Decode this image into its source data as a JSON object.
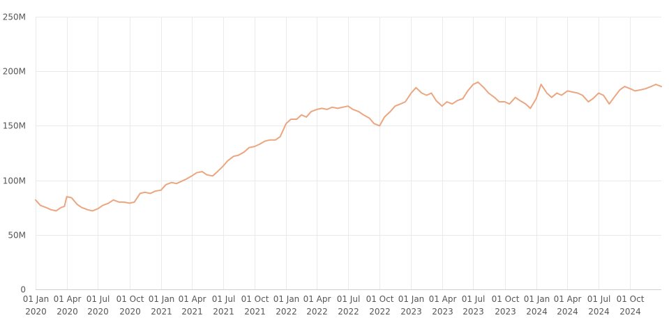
{
  "chart_data": {
    "type": "line",
    "title": "",
    "xlabel": "",
    "ylabel": "",
    "ylim": [
      0,
      250000000
    ],
    "xlim": [
      "2020-01-01",
      "2024-12-31"
    ],
    "grid": true,
    "line_color": "#eba57f",
    "y_ticks": [
      {
        "value": 0,
        "label": "0"
      },
      {
        "value": 50000000,
        "label": "50M"
      },
      {
        "value": 100000000,
        "label": "100M"
      },
      {
        "value": 150000000,
        "label": "150M"
      },
      {
        "value": 200000000,
        "label": "200M"
      },
      {
        "value": 250000000,
        "label": "250M"
      }
    ],
    "x_ticks": [
      {
        "date": "2020-01-01",
        "line1": "01 Jan",
        "line2": "2020"
      },
      {
        "date": "2020-04-01",
        "line1": "01 Apr",
        "line2": "2020"
      },
      {
        "date": "2020-07-01",
        "line1": "01 Jul",
        "line2": "2020"
      },
      {
        "date": "2020-10-01",
        "line1": "01 Oct",
        "line2": "2020"
      },
      {
        "date": "2021-01-01",
        "line1": "01 Jan",
        "line2": "2021"
      },
      {
        "date": "2021-04-01",
        "line1": "01 Apr",
        "line2": "2021"
      },
      {
        "date": "2021-07-01",
        "line1": "01 Jul",
        "line2": "2021"
      },
      {
        "date": "2021-10-01",
        "line1": "01 Oct",
        "line2": "2021"
      },
      {
        "date": "2022-01-01",
        "line1": "01 Jan",
        "line2": "2022"
      },
      {
        "date": "2022-04-01",
        "line1": "01 Apr",
        "line2": "2022"
      },
      {
        "date": "2022-07-01",
        "line1": "01 Jul",
        "line2": "2022"
      },
      {
        "date": "2022-10-01",
        "line1": "01 Oct",
        "line2": "2022"
      },
      {
        "date": "2023-01-01",
        "line1": "01 Jan",
        "line2": "2023"
      },
      {
        "date": "2023-04-01",
        "line1": "01 Apr",
        "line2": "2023"
      },
      {
        "date": "2023-07-01",
        "line1": "01 Jul",
        "line2": "2023"
      },
      {
        "date": "2023-10-01",
        "line1": "01 Oct",
        "line2": "2023"
      },
      {
        "date": "2024-01-01",
        "line1": "01 Jan",
        "line2": "2024"
      },
      {
        "date": "2024-04-01",
        "line1": "01 Apr",
        "line2": "2024"
      },
      {
        "date": "2024-07-01",
        "line1": "01 Jul",
        "line2": "2024"
      },
      {
        "date": "2024-10-01",
        "line1": "01 Oct",
        "line2": "2024"
      }
    ],
    "series": [
      {
        "x": [
          "2020-01-01",
          "2020-01-15",
          "2020-02-01",
          "2020-02-15",
          "2020-03-01",
          "2020-03-15",
          "2020-03-25",
          "2020-04-01",
          "2020-04-15",
          "2020-05-01",
          "2020-05-15",
          "2020-06-01",
          "2020-06-15",
          "2020-07-01",
          "2020-07-15",
          "2020-08-01",
          "2020-08-15",
          "2020-09-01",
          "2020-09-15",
          "2020-10-01",
          "2020-10-15",
          "2020-11-01",
          "2020-11-15",
          "2020-12-01",
          "2020-12-15",
          "2021-01-01",
          "2021-01-15",
          "2021-02-01",
          "2021-02-15",
          "2021-03-01",
          "2021-03-15",
          "2021-04-01",
          "2021-04-15",
          "2021-05-01",
          "2021-05-15",
          "2021-06-01",
          "2021-06-15",
          "2021-07-01",
          "2021-07-15",
          "2021-08-01",
          "2021-08-15",
          "2021-09-01",
          "2021-09-15",
          "2021-10-01",
          "2021-10-15",
          "2021-11-01",
          "2021-11-15",
          "2021-12-01",
          "2021-12-15",
          "2022-01-01",
          "2022-01-15",
          "2022-02-01",
          "2022-02-15",
          "2022-03-01",
          "2022-03-15",
          "2022-04-01",
          "2022-04-15",
          "2022-05-01",
          "2022-05-15",
          "2022-06-01",
          "2022-06-15",
          "2022-07-01",
          "2022-07-15",
          "2022-08-01",
          "2022-08-15",
          "2022-09-01",
          "2022-09-15",
          "2022-10-01",
          "2022-10-15",
          "2022-11-01",
          "2022-11-15",
          "2022-12-01",
          "2022-12-15",
          "2023-01-01",
          "2023-01-15",
          "2023-02-01",
          "2023-02-15",
          "2023-03-01",
          "2023-03-15",
          "2023-04-01",
          "2023-04-15",
          "2023-05-01",
          "2023-05-15",
          "2023-06-01",
          "2023-06-15",
          "2023-07-01",
          "2023-07-15",
          "2023-08-01",
          "2023-08-15",
          "2023-09-01",
          "2023-09-15",
          "2023-10-01",
          "2023-10-15",
          "2023-11-01",
          "2023-11-15",
          "2023-12-01",
          "2023-12-15",
          "2024-01-01",
          "2024-01-15",
          "2024-02-01",
          "2024-02-15",
          "2024-03-01",
          "2024-03-15",
          "2024-04-01",
          "2024-04-15",
          "2024-05-01",
          "2024-05-15",
          "2024-06-01",
          "2024-06-15",
          "2024-07-01",
          "2024-07-15",
          "2024-08-01",
          "2024-08-15",
          "2024-09-01",
          "2024-09-15",
          "2024-10-01",
          "2024-10-15",
          "2024-11-01",
          "2024-11-15",
          "2024-12-01",
          "2024-12-15",
          "2024-12-31"
        ],
        "y": [
          82000000,
          77000000,
          75000000,
          73000000,
          72000000,
          75000000,
          76000000,
          85000000,
          84000000,
          78000000,
          75000000,
          73000000,
          72000000,
          74000000,
          77000000,
          79000000,
          82000000,
          80000000,
          80000000,
          79000000,
          80000000,
          88000000,
          89000000,
          88000000,
          90000000,
          91000000,
          96000000,
          98000000,
          97000000,
          99000000,
          101000000,
          104000000,
          107000000,
          108000000,
          105000000,
          104000000,
          108000000,
          113000000,
          118000000,
          122000000,
          123000000,
          126000000,
          130000000,
          131000000,
          133000000,
          136000000,
          137000000,
          137000000,
          140000000,
          152000000,
          156000000,
          156000000,
          160000000,
          158000000,
          163000000,
          165000000,
          166000000,
          165000000,
          167000000,
          166000000,
          167000000,
          168000000,
          165000000,
          163000000,
          160000000,
          157000000,
          152000000,
          150000000,
          158000000,
          163000000,
          168000000,
          170000000,
          172000000,
          180000000,
          185000000,
          180000000,
          178000000,
          180000000,
          173000000,
          168000000,
          172000000,
          170000000,
          173000000,
          175000000,
          182000000,
          188000000,
          190000000,
          185000000,
          180000000,
          176000000,
          172000000,
          172000000,
          170000000,
          176000000,
          173000000,
          170000000,
          166000000,
          175000000,
          188000000,
          180000000,
          176000000,
          180000000,
          178000000,
          182000000,
          181000000,
          180000000,
          178000000,
          172000000,
          175000000,
          180000000,
          178000000,
          170000000,
          176000000,
          183000000,
          186000000,
          184000000,
          182000000,
          183000000,
          184000000,
          186000000,
          188000000,
          186000000
        ]
      }
    ]
  }
}
